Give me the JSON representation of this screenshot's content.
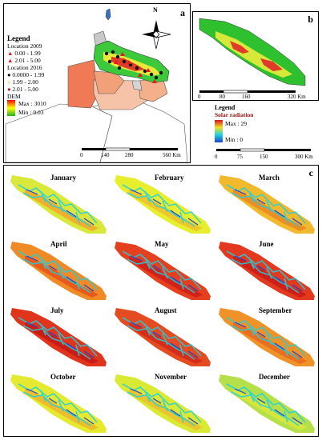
{
  "panel_a": {
    "letter": "a",
    "legend_title": "Legend",
    "loc2009_title": "Location 2009",
    "loc2009_items": [
      "0.00 - 1.99",
      "2.01 - 5.00"
    ],
    "loc2016_title": "Location 2016",
    "loc2016_items": [
      "0.0000 - 1.99",
      "1.99 - 2.00",
      "2.01 - 5.00"
    ],
    "dem_title": "DEM",
    "dem_max": "Max : 3010",
    "dem_min": "Min : 0.03",
    "north": "N",
    "scale_labels": [
      "0",
      "140",
      "280",
      "560 Km"
    ]
  },
  "panel_b": {
    "letter": "b",
    "scale_labels": [
      "0",
      "80",
      "160",
      "320 Km"
    ]
  },
  "solar_legend": {
    "title": "Legend",
    "subtitle": "Solar radiation",
    "max": "Max : 29",
    "min": "Min : 0",
    "scale_labels": [
      "0",
      "75",
      "150",
      "300 Km"
    ]
  },
  "panel_c": {
    "letter": "c",
    "months": [
      {
        "name": "January",
        "base": "#d9e83a",
        "hot": "#f2a92c"
      },
      {
        "name": "February",
        "base": "#e6ee2e",
        "hot": "#f0c12b"
      },
      {
        "name": "March",
        "base": "#f1b92c",
        "hot": "#ec8a22"
      },
      {
        "name": "April",
        "base": "#ef8a26",
        "hot": "#e8531c"
      },
      {
        "name": "May",
        "base": "#e43f1e",
        "hot": "#cf1e18"
      },
      {
        "name": "June",
        "base": "#e23a1e",
        "hot": "#cc1c17"
      },
      {
        "name": "July",
        "base": "#e0351d",
        "hot": "#c81a16"
      },
      {
        "name": "August",
        "base": "#e44b20",
        "hot": "#d32a1a"
      },
      {
        "name": "September",
        "base": "#ef9227",
        "hot": "#e86a20"
      },
      {
        "name": "October",
        "base": "#e5ea30",
        "hot": "#efb82a"
      },
      {
        "name": "November",
        "base": "#d9e934",
        "hot": "#ecc12c"
      },
      {
        "name": "December",
        "base": "#b6e04a",
        "hot": "#d8e83a"
      }
    ]
  },
  "colors": {
    "dem_high": "#ff0000",
    "dem_mid": "#ffff00",
    "dem_low": "#1fb31f",
    "radiation_low": "#1f3fd0",
    "radiation_cyan": "#1fd0e0"
  }
}
